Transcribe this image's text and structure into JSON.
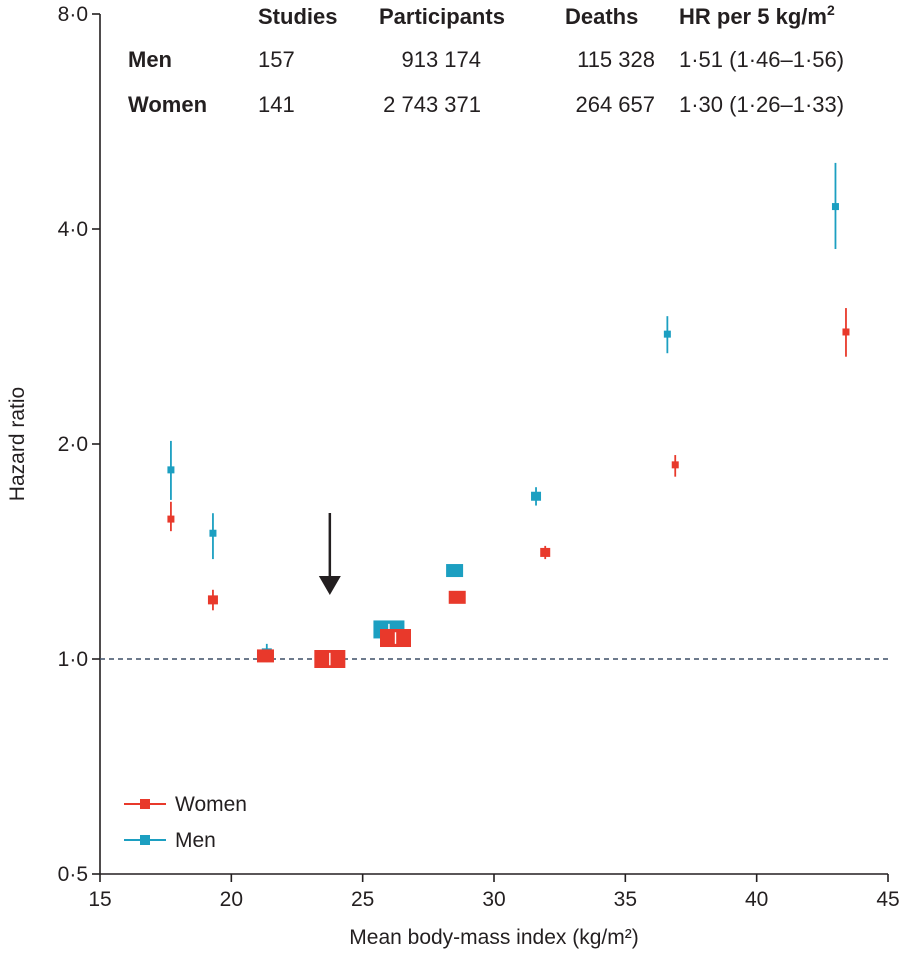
{
  "chart_data": {
    "type": "scatter",
    "xlabel": "Mean body-mass index (kg/m²)",
    "ylabel": "Hazard ratio",
    "xlim": [
      15,
      45
    ],
    "ylim": [
      0.5,
      8.0
    ],
    "y_scale": "log",
    "x_ticks": [
      "15",
      "20",
      "25",
      "30",
      "35",
      "40",
      "45"
    ],
    "y_ticks": [
      {
        "value": 0.5,
        "label": "0·5"
      },
      {
        "value": 1.0,
        "label": "1·0"
      },
      {
        "value": 2.0,
        "label": "2·0"
      },
      {
        "value": 4.0,
        "label": "4·0"
      },
      {
        "value": 8.0,
        "label": "8·0"
      }
    ],
    "reference_line": 1.0,
    "reference_arrow_bmi": 23.75,
    "legend": {
      "position": "bottom-left"
    },
    "series": [
      {
        "name": "Women",
        "color": "#e8392b",
        "points": [
          {
            "bmi": 17.7,
            "hr": 1.57,
            "lo": 1.51,
            "hi": 1.66,
            "size": 1
          },
          {
            "bmi": 19.3,
            "hr": 1.21,
            "lo": 1.17,
            "hi": 1.25,
            "size": 2
          },
          {
            "bmi": 21.3,
            "hr": 1.01,
            "lo": 1.0,
            "hi": 1.02,
            "size": 3
          },
          {
            "bmi": 23.75,
            "hr": 1.0,
            "lo": 0.98,
            "hi": 1.02,
            "size": 5
          },
          {
            "bmi": 26.25,
            "hr": 1.07,
            "lo": 1.05,
            "hi": 1.09,
            "size": 5
          },
          {
            "bmi": 28.6,
            "hr": 1.22,
            "lo": 1.2,
            "hi": 1.24,
            "size": 3
          },
          {
            "bmi": 31.95,
            "hr": 1.41,
            "lo": 1.38,
            "hi": 1.44,
            "size": 2
          },
          {
            "bmi": 36.9,
            "hr": 1.87,
            "lo": 1.8,
            "hi": 1.93,
            "size": 1
          },
          {
            "bmi": 43.4,
            "hr": 2.87,
            "lo": 2.65,
            "hi": 3.1,
            "size": 1
          }
        ]
      },
      {
        "name": "Men",
        "color": "#1c9fc1",
        "points": [
          {
            "bmi": 17.7,
            "hr": 1.84,
            "lo": 1.67,
            "hi": 2.02,
            "size": 1
          },
          {
            "bmi": 19.3,
            "hr": 1.5,
            "lo": 1.38,
            "hi": 1.6,
            "size": 1
          },
          {
            "bmi": 21.35,
            "hr": 1.02,
            "lo": 0.99,
            "hi": 1.05,
            "size": 2
          },
          {
            "bmi": 23.75,
            "hr": 1.0,
            "lo": 0.98,
            "hi": 1.02,
            "size": 4
          },
          {
            "bmi": 26.0,
            "hr": 1.1,
            "lo": 1.08,
            "hi": 1.12,
            "size": 5
          },
          {
            "bmi": 28.5,
            "hr": 1.33,
            "lo": 1.31,
            "hi": 1.35,
            "size": 3
          },
          {
            "bmi": 31.6,
            "hr": 1.69,
            "lo": 1.64,
            "hi": 1.74,
            "size": 2
          },
          {
            "bmi": 36.6,
            "hr": 2.85,
            "lo": 2.68,
            "hi": 3.02,
            "size": 1
          },
          {
            "bmi": 43.0,
            "hr": 4.3,
            "lo": 3.75,
            "hi": 4.95,
            "size": 1
          }
        ]
      }
    ]
  },
  "table": {
    "headers": {
      "studies": "Studies",
      "participants": "Participants",
      "deaths": "Deaths",
      "hr_prefix": "HR per 5 kg/m",
      "hr_sup": "2"
    },
    "rows": [
      {
        "label": "Men",
        "studies": "157",
        "participants": "913 174",
        "deaths": "115 328",
        "hr": "1·51 (1·46–1·56)"
      },
      {
        "label": "Women",
        "studies": "141",
        "participants": "2 743 371",
        "deaths": "264 657",
        "hr": "1·30 (1·26–1·33)"
      }
    ]
  },
  "legend_items": [
    "Women",
    "Men"
  ]
}
